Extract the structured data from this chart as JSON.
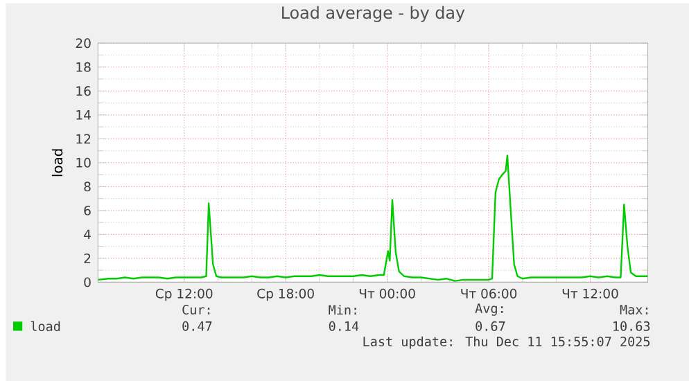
{
  "chart_data": {
    "type": "line",
    "title": "Load average - by day",
    "ylabel": "load",
    "xlim": [
      "2025-12-10T06:54",
      "2025-12-11T15:24"
    ],
    "ylim": [
      0,
      20
    ],
    "xticks": [
      {
        "value": "2025-12-10T12:00",
        "label": "Ср 12:00"
      },
      {
        "value": "2025-12-10T18:00",
        "label": "Ср 18:00"
      },
      {
        "value": "2025-12-11T00:00",
        "label": "Чт 00:00"
      },
      {
        "value": "2025-12-11T06:00",
        "label": "Чт 06:00"
      },
      {
        "value": "2025-12-11T12:00",
        "label": "Чт 12:00"
      }
    ],
    "yticks": [
      0,
      2,
      4,
      6,
      8,
      10,
      12,
      14,
      16,
      18,
      20
    ],
    "grid": true,
    "legend": "bottom",
    "marker": "none",
    "line_style": "solid",
    "series": [
      {
        "name": "load",
        "color": "#00cc00",
        "x": [
          "2025-12-10T06:54",
          "2025-12-10T07:30",
          "2025-12-10T08:00",
          "2025-12-10T08:30",
          "2025-12-10T09:00",
          "2025-12-10T09:30",
          "2025-12-10T10:00",
          "2025-12-10T10:30",
          "2025-12-10T11:00",
          "2025-12-10T11:30",
          "2025-12-10T12:00",
          "2025-12-10T12:30",
          "2025-12-10T13:00",
          "2025-12-10T13:18",
          "2025-12-10T13:27",
          "2025-12-10T13:42",
          "2025-12-10T13:54",
          "2025-12-10T14:12",
          "2025-12-10T14:30",
          "2025-12-10T15:00",
          "2025-12-10T15:30",
          "2025-12-10T16:00",
          "2025-12-10T16:30",
          "2025-12-10T17:00",
          "2025-12-10T17:30",
          "2025-12-10T18:00",
          "2025-12-10T18:30",
          "2025-12-10T19:00",
          "2025-12-10T19:30",
          "2025-12-10T20:00",
          "2025-12-10T20:30",
          "2025-12-10T21:00",
          "2025-12-10T21:30",
          "2025-12-10T22:00",
          "2025-12-10T22:30",
          "2025-12-10T23:00",
          "2025-12-10T23:30",
          "2025-12-10T23:48",
          "2025-12-11T00:03",
          "2025-12-11T00:09",
          "2025-12-11T00:18",
          "2025-12-11T00:30",
          "2025-12-11T00:42",
          "2025-12-11T01:00",
          "2025-12-11T01:30",
          "2025-12-11T02:00",
          "2025-12-11T02:30",
          "2025-12-11T03:00",
          "2025-12-11T03:30",
          "2025-12-11T04:00",
          "2025-12-11T04:30",
          "2025-12-11T05:00",
          "2025-12-11T05:30",
          "2025-12-11T06:00",
          "2025-12-11T06:12",
          "2025-12-11T06:24",
          "2025-12-11T06:36",
          "2025-12-11T06:48",
          "2025-12-11T07:00",
          "2025-12-11T07:06",
          "2025-12-11T07:18",
          "2025-12-11T07:30",
          "2025-12-11T07:42",
          "2025-12-11T08:00",
          "2025-12-11T08:30",
          "2025-12-11T09:00",
          "2025-12-11T09:30",
          "2025-12-11T10:00",
          "2025-12-11T10:30",
          "2025-12-11T11:00",
          "2025-12-11T11:30",
          "2025-12-11T12:00",
          "2025-12-11T12:30",
          "2025-12-11T13:00",
          "2025-12-11T13:30",
          "2025-12-11T13:48",
          "2025-12-11T14:00",
          "2025-12-11T14:12",
          "2025-12-11T14:24",
          "2025-12-11T14:42",
          "2025-12-11T15:00",
          "2025-12-11T15:24"
        ],
        "values": [
          0.2,
          0.3,
          0.3,
          0.4,
          0.3,
          0.4,
          0.4,
          0.4,
          0.3,
          0.4,
          0.4,
          0.4,
          0.4,
          0.5,
          6.6,
          1.5,
          0.5,
          0.4,
          0.4,
          0.4,
          0.4,
          0.5,
          0.4,
          0.4,
          0.5,
          0.4,
          0.5,
          0.5,
          0.5,
          0.6,
          0.5,
          0.5,
          0.5,
          0.5,
          0.6,
          0.5,
          0.6,
          0.6,
          2.6,
          1.8,
          6.9,
          2.5,
          0.9,
          0.5,
          0.4,
          0.4,
          0.3,
          0.2,
          0.3,
          0.1,
          0.2,
          0.2,
          0.2,
          0.2,
          0.3,
          7.5,
          8.6,
          9.0,
          9.3,
          10.6,
          6.0,
          1.5,
          0.5,
          0.3,
          0.4,
          0.4,
          0.4,
          0.4,
          0.4,
          0.4,
          0.4,
          0.5,
          0.4,
          0.5,
          0.4,
          0.4,
          6.5,
          3.0,
          0.8,
          0.5,
          0.5,
          0.5
        ]
      }
    ],
    "annotations": [
      "Cur:",
      "0.47",
      "Min:",
      "0.14",
      "Avg:",
      "0.67",
      "Max:",
      "10.63",
      "Last update: Thu Dec 11 15:55:07 2025"
    ]
  }
}
